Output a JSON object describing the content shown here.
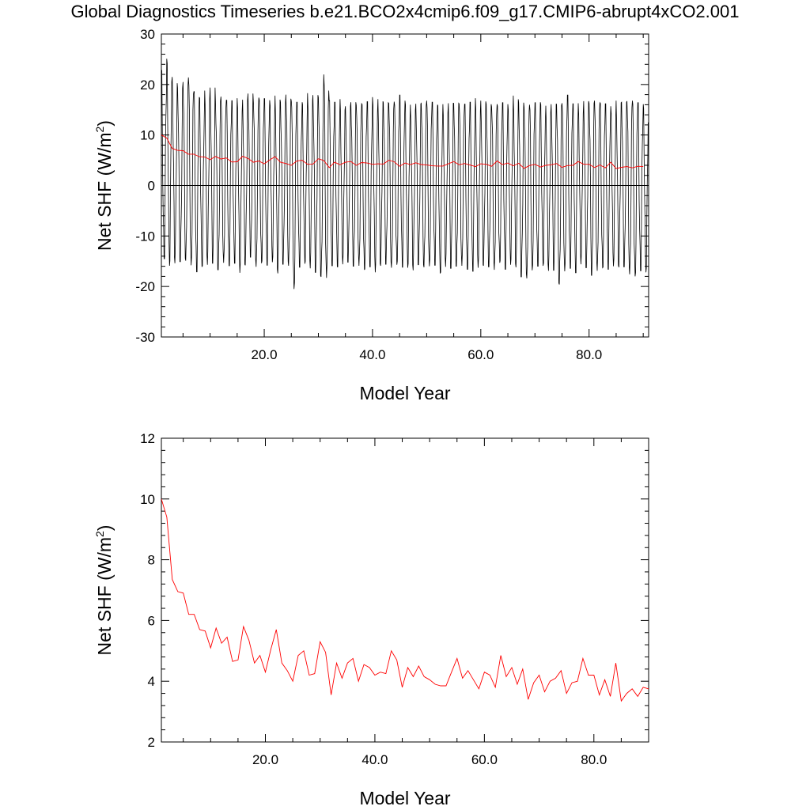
{
  "title": "Global Diagnostics Timeseries b.e21.BCO2x4cmip6.f09_g17.CMIP6-abrupt4xCO2.001",
  "colors": {
    "monthly": "#000000",
    "annual": "#ff0000",
    "axis": "#000000"
  },
  "chart_data": [
    {
      "type": "line",
      "xlabel": "Model Year",
      "ylabel": "Net SHF (W/m2)",
      "ylabel_base": "Net SHF (W/m",
      "ylabel_sup": "2",
      "ylabel_end": ")",
      "xlim": [
        1,
        91
      ],
      "ylim": [
        -30,
        30
      ],
      "xticks": [
        "20.0",
        "40.0",
        "60.0",
        "80.0"
      ],
      "xtick_values": [
        20,
        40,
        60,
        80
      ],
      "yticks": [
        "-30",
        "-20",
        "-10",
        "0",
        "10",
        "20",
        "30"
      ],
      "ytick_values": [
        -30,
        -20,
        -10,
        0,
        10,
        20,
        30
      ],
      "zero_line": true,
      "monthly_series": {
        "start_year": 1,
        "months_per_year": 12,
        "annual_max": [
          22.8,
          25.1,
          21.5,
          19.3,
          20.5,
          21.4,
          18.6,
          17.5,
          18.8,
          19.4,
          16.7,
          17.6,
          16.9,
          16.8,
          17.3,
          17.0,
          18.2,
          16.4,
          17.4,
          17.2,
          16.9,
          17.8,
          16.5,
          18.0,
          16.7,
          16.5,
          16.5,
          18.3,
          17.9,
          17.4,
          22.0,
          16.8,
          16.5,
          17.1,
          15.7,
          16.5,
          15.9,
          16.2,
          16.6,
          17.5,
          17.1,
          16.4,
          16.3,
          16.6,
          17.9,
          16.8,
          16.0,
          16.2,
          16.3,
          16.8,
          16.5,
          16.0,
          16.1,
          16.3,
          16.3,
          16.2,
          16.1,
          16.5,
          17.3,
          16.8,
          16.1,
          15.6,
          16.1,
          16.4,
          16.1,
          17.8,
          16.4,
          15.5,
          16.0,
          16.4,
          16.5,
          15.8,
          16.1,
          16.1,
          16.3,
          17.9,
          16.2,
          16.3,
          16.7,
          16.3,
          16.8,
          16.4,
          16.2,
          15.7,
          16.8,
          16.5,
          16.7,
          16.8,
          16.4,
          16.1
        ],
        "annual_min": [
          -14.5,
          -15.9,
          -15.4,
          -15.1,
          -14.9,
          -15.8,
          -17.1,
          -16.1,
          -15.7,
          -15.4,
          -16.7,
          -15.3,
          -15.9,
          -15.4,
          -17.3,
          -15.8,
          -14.2,
          -16.1,
          -15.4,
          -15.8,
          -15.2,
          -17.4,
          -15.6,
          -15.9,
          -20.5,
          -16.2,
          -15.5,
          -16.4,
          -17.2,
          -18.1,
          -18.3,
          -15.9,
          -16.1,
          -15.6,
          -15.2,
          -16.0,
          -15.9,
          -16.7,
          -16.1,
          -17.2,
          -15.9,
          -15.6,
          -16.3,
          -15.7,
          -16.2,
          -16.3,
          -16.8,
          -15.7,
          -16.2,
          -16.0,
          -15.8,
          -17.4,
          -16.1,
          -16.4,
          -16.0,
          -15.9,
          -16.6,
          -17.0,
          -16.3,
          -15.9,
          -16.1,
          -16.7,
          -15.3,
          -16.6,
          -15.7,
          -16.2,
          -18.1,
          -18.4,
          -16.8,
          -16.0,
          -15.9,
          -16.9,
          -16.8,
          -19.6,
          -17.0,
          -16.4,
          -17.3,
          -15.6,
          -16.3,
          -17.8,
          -16.9,
          -16.3,
          -16.6,
          -16.0,
          -16.2,
          -16.1,
          -17.6,
          -18.0,
          -16.9,
          -17.2
        ]
      },
      "annual_x": [
        1,
        2,
        3,
        4,
        5,
        6,
        7,
        8,
        9,
        10,
        11,
        12,
        13,
        14,
        15,
        16,
        17,
        18,
        19,
        20,
        21,
        22,
        23,
        24,
        25,
        26,
        27,
        28,
        29,
        30,
        31,
        32,
        33,
        34,
        35,
        36,
        37,
        38,
        39,
        40,
        41,
        42,
        43,
        44,
        45,
        46,
        47,
        48,
        49,
        50,
        51,
        52,
        53,
        54,
        55,
        56,
        57,
        58,
        59,
        60,
        61,
        62,
        63,
        64,
        65,
        66,
        67,
        68,
        69,
        70,
        71,
        72,
        73,
        74,
        75,
        76,
        77,
        78,
        79,
        80,
        81,
        82,
        83,
        84,
        85,
        86,
        87,
        88,
        89,
        90
      ],
      "annual_mean": [
        10.0,
        9.4,
        7.35,
        6.95,
        6.9,
        6.2,
        6.2,
        5.7,
        5.65,
        5.1,
        5.75,
        5.25,
        5.45,
        4.65,
        4.7,
        5.8,
        5.35,
        4.6,
        4.85,
        4.3,
        5.05,
        5.7,
        4.6,
        4.35,
        4.0,
        4.85,
        5.0,
        4.2,
        4.25,
        5.3,
        4.95,
        3.55,
        4.6,
        4.1,
        4.6,
        4.75,
        4.0,
        4.55,
        4.45,
        4.2,
        4.3,
        4.25,
        5.0,
        4.7,
        3.8,
        4.45,
        4.15,
        4.5,
        4.15,
        4.05,
        3.9,
        3.85,
        3.85,
        4.3,
        4.75,
        4.1,
        4.35,
        4.05,
        3.75,
        4.3,
        4.2,
        3.8,
        4.85,
        4.15,
        4.45,
        3.9,
        4.4,
        3.4,
        3.95,
        4.2,
        3.65,
        4.0,
        4.1,
        4.35,
        3.6,
        3.95,
        4.0,
        4.75,
        4.2,
        4.2,
        3.55,
        4.05,
        3.5,
        4.6,
        3.35,
        3.6,
        3.75,
        3.5,
        3.8,
        3.75
      ]
    },
    {
      "type": "line",
      "xlabel": "Model Year",
      "ylabel": "Net SHF (W/m2)",
      "ylabel_base": "Net SHF (W/m",
      "ylabel_sup": "2",
      "ylabel_end": ")",
      "xlim": [
        1,
        90
      ],
      "ylim": [
        2,
        12
      ],
      "xticks": [
        "20.0",
        "40.0",
        "60.0",
        "80.0"
      ],
      "xtick_values": [
        20,
        40,
        60,
        80
      ],
      "yticks": [
        "2",
        "4",
        "6",
        "8",
        "10",
        "12"
      ],
      "ytick_values": [
        2,
        4,
        6,
        8,
        10,
        12
      ],
      "zero_line": false,
      "annual_x": [
        1,
        2,
        3,
        4,
        5,
        6,
        7,
        8,
        9,
        10,
        11,
        12,
        13,
        14,
        15,
        16,
        17,
        18,
        19,
        20,
        21,
        22,
        23,
        24,
        25,
        26,
        27,
        28,
        29,
        30,
        31,
        32,
        33,
        34,
        35,
        36,
        37,
        38,
        39,
        40,
        41,
        42,
        43,
        44,
        45,
        46,
        47,
        48,
        49,
        50,
        51,
        52,
        53,
        54,
        55,
        56,
        57,
        58,
        59,
        60,
        61,
        62,
        63,
        64,
        65,
        66,
        67,
        68,
        69,
        70,
        71,
        72,
        73,
        74,
        75,
        76,
        77,
        78,
        79,
        80,
        81,
        82,
        83,
        84,
        85,
        86,
        87,
        88,
        89,
        90
      ],
      "annual_mean": [
        10.0,
        9.4,
        7.35,
        6.95,
        6.9,
        6.2,
        6.2,
        5.7,
        5.65,
        5.1,
        5.75,
        5.25,
        5.45,
        4.65,
        4.7,
        5.8,
        5.35,
        4.6,
        4.85,
        4.3,
        5.05,
        5.7,
        4.6,
        4.35,
        4.0,
        4.85,
        5.0,
        4.2,
        4.25,
        5.3,
        4.95,
        3.55,
        4.6,
        4.1,
        4.6,
        4.75,
        4.0,
        4.55,
        4.45,
        4.2,
        4.3,
        4.25,
        5.0,
        4.7,
        3.8,
        4.45,
        4.15,
        4.5,
        4.15,
        4.05,
        3.9,
        3.85,
        3.85,
        4.3,
        4.75,
        4.1,
        4.35,
        4.05,
        3.75,
        4.3,
        4.2,
        3.8,
        4.85,
        4.15,
        4.45,
        3.9,
        4.4,
        3.4,
        3.95,
        4.2,
        3.65,
        4.0,
        4.1,
        4.35,
        3.6,
        3.95,
        4.0,
        4.75,
        4.2,
        4.2,
        3.55,
        4.05,
        3.5,
        4.6,
        3.35,
        3.6,
        3.75,
        3.5,
        3.8,
        3.75
      ]
    }
  ]
}
